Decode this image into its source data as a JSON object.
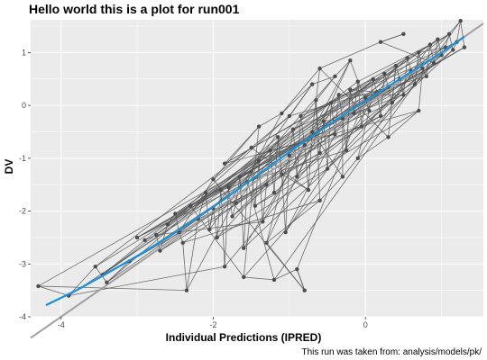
{
  "chart_data": {
    "type": "scatter",
    "title": "Hello world this is a plot for run001",
    "xlabel": "Individual Predictions (IPRED)",
    "ylabel": "DV",
    "caption": "This run was taken from: analysis/models/pk/",
    "xlim": [
      -4.4,
      1.55
    ],
    "ylim": [
      -4.0,
      1.62
    ],
    "x_ticks": [
      -4,
      -2,
      0
    ],
    "y_ticks": [
      -4,
      -3,
      -2,
      -1,
      0,
      1
    ],
    "x_tick_labels": [
      "-4",
      "-2",
      "0"
    ],
    "y_tick_labels": [
      "-4",
      "-3",
      "-2",
      "-1",
      "0",
      "1"
    ],
    "grid": true,
    "identity_line": {
      "slope": 1,
      "intercept": 0,
      "color": "#a0a0a0"
    },
    "smooth": {
      "color": "#1e90d8",
      "x": [
        -4.2,
        -3.8,
        -3.4,
        -3.0,
        -2.6,
        -2.2,
        -1.8,
        -1.4,
        -1.0,
        -0.6,
        -0.2,
        0.2,
        0.6,
        1.0,
        1.3
      ],
      "y": [
        -3.78,
        -3.5,
        -3.18,
        -2.85,
        -2.5,
        -2.12,
        -1.72,
        -1.3,
        -0.88,
        -0.48,
        -0.1,
        0.27,
        0.63,
        1.0,
        1.3
      ]
    },
    "points_color": "#4d4d4d",
    "points": [
      [
        -4.3,
        -3.42
      ],
      [
        -3.9,
        -3.6
      ],
      [
        -3.55,
        -3.05
      ],
      [
        -3.4,
        -3.35
      ],
      [
        -3.1,
        -2.95
      ],
      [
        -3.45,
        -3.2
      ],
      [
        -2.9,
        -2.55
      ],
      [
        -2.75,
        -2.45
      ],
      [
        -2.7,
        -2.75
      ],
      [
        -2.6,
        -2.25
      ],
      [
        -2.5,
        -2.05
      ],
      [
        -2.45,
        -2.4
      ],
      [
        -2.4,
        -2.6
      ],
      [
        -2.35,
        -3.5
      ],
      [
        -2.2,
        -2.15
      ],
      [
        -2.1,
        -1.65
      ],
      [
        -2.05,
        -2.35
      ],
      [
        -2.0,
        -1.95
      ],
      [
        -1.95,
        -2.5
      ],
      [
        -1.9,
        -1.6
      ],
      [
        -1.85,
        -3.05
      ],
      [
        -1.8,
        -1.55
      ],
      [
        -1.75,
        -2.1
      ],
      [
        -1.7,
        -1.85
      ],
      [
        -1.65,
        -1.35
      ],
      [
        -1.6,
        -2.7
      ],
      [
        -1.55,
        -1.45
      ],
      [
        -1.5,
        -1.25
      ],
      [
        -1.45,
        -1.9
      ],
      [
        -1.4,
        -1.05
      ],
      [
        -1.35,
        -2.2
      ],
      [
        -1.3,
        -1.5
      ],
      [
        -1.25,
        -0.85
      ],
      [
        -1.2,
        -1.65
      ],
      [
        -1.15,
        -0.6
      ],
      [
        -1.1,
        -1.3
      ],
      [
        -1.05,
        -2.4
      ],
      [
        -1.0,
        -0.95
      ],
      [
        -0.95,
        -0.45
      ],
      [
        -0.9,
        -1.35
      ],
      [
        -0.85,
        -0.2
      ],
      [
        -0.8,
        -0.75
      ],
      [
        -0.75,
        -1.6
      ],
      [
        -0.7,
        -0.5
      ],
      [
        -0.65,
        0.1
      ],
      [
        -0.6,
        -0.9
      ],
      [
        -0.55,
        -0.3
      ],
      [
        -0.5,
        -1.2
      ],
      [
        -0.45,
        0.05
      ],
      [
        -0.4,
        -0.55
      ],
      [
        -0.35,
        0.2
      ],
      [
        -0.3,
        -0.25
      ],
      [
        -0.25,
        -0.85
      ],
      [
        -0.2,
        0.3
      ],
      [
        -0.15,
        -0.15
      ],
      [
        -0.1,
        0.45
      ],
      [
        -0.05,
        -0.4
      ],
      [
        0.0,
        0.15
      ],
      [
        0.05,
        -0.1
      ],
      [
        0.1,
        0.5
      ],
      [
        0.15,
        0.25
      ],
      [
        0.2,
        -0.2
      ],
      [
        0.25,
        0.6
      ],
      [
        0.3,
        0.35
      ],
      [
        0.35,
        0.05
      ],
      [
        0.4,
        0.75
      ],
      [
        0.45,
        0.5
      ],
      [
        0.5,
        0.2
      ],
      [
        0.55,
        0.9
      ],
      [
        0.6,
        0.65
      ],
      [
        0.65,
        0.4
      ],
      [
        0.7,
        1.0
      ],
      [
        0.75,
        0.7
      ],
      [
        0.8,
        0.55
      ],
      [
        0.85,
        1.15
      ],
      [
        0.9,
        0.8
      ],
      [
        0.95,
        1.25
      ],
      [
        1.0,
        0.95
      ],
      [
        1.05,
        1.1
      ],
      [
        1.1,
        1.35
      ],
      [
        1.15,
        1.05
      ],
      [
        1.2,
        1.2
      ],
      [
        1.25,
        1.6
      ],
      [
        1.3,
        1.1
      ],
      [
        -3.0,
        -2.5
      ],
      [
        -2.3,
        -1.9
      ],
      [
        -1.6,
        -3.25
      ],
      [
        -1.2,
        -3.3
      ],
      [
        -0.9,
        -3.1
      ],
      [
        -0.8,
        -3.5
      ],
      [
        -2.0,
        -1.4
      ],
      [
        -1.5,
        -0.8
      ],
      [
        -1.0,
        -0.2
      ],
      [
        -0.7,
        0.4
      ],
      [
        -0.4,
        0.55
      ],
      [
        -0.2,
        0.85
      ],
      [
        -1.3,
        -2.6
      ],
      [
        -0.6,
        -1.8
      ],
      [
        -0.3,
        -1.35
      ],
      [
        -0.1,
        -1.0
      ],
      [
        0.3,
        -0.6
      ],
      [
        0.7,
        -0.1
      ],
      [
        -1.85,
        -1.1
      ],
      [
        -1.4,
        -0.4
      ],
      [
        -1.1,
        -0.15
      ],
      [
        -0.6,
        0.7
      ],
      [
        0.2,
        1.2
      ],
      [
        0.5,
        1.35
      ]
    ]
  }
}
